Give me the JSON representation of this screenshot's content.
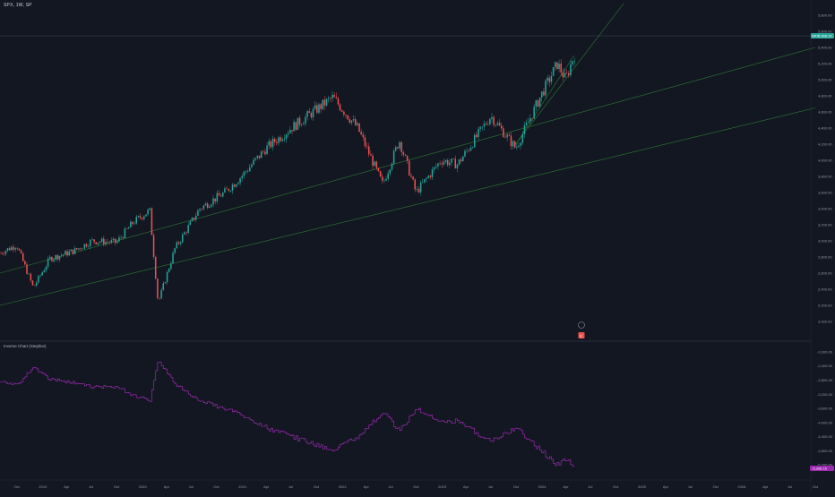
{
  "header": {
    "symbol": "SPX, 1W, SP"
  },
  "indicator": {
    "title": "Inverse Chart (Stepline)"
  },
  "price_axis": {
    "labels": [
      "5,800.00",
      "5,600.00",
      "5,400.00",
      "5,200.00",
      "5,000.00",
      "4,800.00",
      "4,600.00",
      "4,400.00",
      "4,200.00",
      "4,000.00",
      "3,800.00",
      "3,600.00",
      "3,400.00",
      "3,200.00",
      "3,000.00",
      "2,800.00",
      "2,600.00",
      "2,400.00",
      "2,200.00",
      "2,000.00"
    ],
    "current_price": "5,308.15",
    "current_tag": "SPX"
  },
  "indicator_axis": {
    "labels": [
      "-2,000.00",
      "-2,400.00",
      "-2,800.00",
      "-3,200.00",
      "-3,600.00",
      "-4,000.00",
      "-4,400.00",
      "-4,800.00",
      "-5,200.00"
    ],
    "current_value": "-5,308.15"
  },
  "time_axis": {
    "labels": [
      "Oct",
      "2019",
      "Apr",
      "Jul",
      "Oct",
      "2020",
      "Apr",
      "Jul",
      "Oct",
      "2021",
      "Apr",
      "Jul",
      "Oct",
      "2022",
      "Apr",
      "Jul",
      "Oct",
      "2023",
      "Apr",
      "Jul",
      "Oct",
      "2024",
      "Apr",
      "Jul",
      "Oct",
      "2025",
      "Apr",
      "Jul",
      "Oct",
      "2026",
      "Apr",
      "Jul",
      "Oct"
    ]
  },
  "events": {
    "earnings_icon": "E"
  },
  "colors": {
    "background": "#131722",
    "up": "#26a69a",
    "down": "#ef5350",
    "trendline": "#2e7d32",
    "indicator": "#9c27b0",
    "price_badge": "#26a69a"
  },
  "chart_data": {
    "type": "candlestick",
    "timeframe": "1W",
    "ylim": [
      1900,
      5900
    ],
    "x_range": [
      "2018-08",
      "2026-10"
    ],
    "close_path": [
      [
        "2018-08",
        2850
      ],
      [
        "2018-10",
        2950
      ],
      [
        "2018-12",
        2420
      ],
      [
        "2019-02",
        2780
      ],
      [
        "2019-05",
        2880
      ],
      [
        "2019-07",
        3000
      ],
      [
        "2019-10",
        2980
      ],
      [
        "2019-12",
        3230
      ],
      [
        "2020-02",
        3380
      ],
      [
        "2020-03",
        2230
      ],
      [
        "2020-05",
        2900
      ],
      [
        "2020-08",
        3400
      ],
      [
        "2020-11",
        3600
      ],
      [
        "2021-01",
        3800
      ],
      [
        "2021-04",
        4150
      ],
      [
        "2021-07",
        4400
      ],
      [
        "2021-12",
        4780
      ],
      [
        "2022-03",
        4400
      ],
      [
        "2022-06",
        3700
      ],
      [
        "2022-08",
        4250
      ],
      [
        "2022-10",
        3600
      ],
      [
        "2023-01",
        4000
      ],
      [
        "2023-03",
        3950
      ],
      [
        "2023-07",
        4550
      ],
      [
        "2023-10",
        4150
      ],
      [
        "2024-01",
        4800
      ],
      [
        "2024-03",
        5200
      ],
      [
        "2024-04",
        5000
      ],
      [
        "2024-05",
        5308.15
      ]
    ],
    "indicator": {
      "name": "Inverse Chart (Stepline)",
      "ylim": [
        -5400,
        -1900
      ],
      "note_values_are_negated_price": true
    },
    "grid": false
  }
}
